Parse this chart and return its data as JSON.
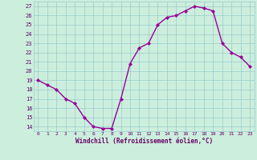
{
  "x": [
    0,
    1,
    2,
    3,
    4,
    5,
    6,
    7,
    8,
    9,
    10,
    11,
    12,
    13,
    14,
    15,
    16,
    17,
    18,
    19,
    20,
    21,
    22,
    23
  ],
  "y": [
    19,
    18.5,
    18,
    17,
    16.5,
    15,
    14,
    13.8,
    13.8,
    17,
    20.8,
    22.5,
    23,
    25,
    25.8,
    26,
    26.5,
    27,
    26.8,
    26.5,
    23,
    22,
    21.5,
    20.5
  ],
  "line_color": "#990099",
  "marker": "D",
  "marker_size": 2,
  "bg_color": "#cceedd",
  "grid_color": "#99cccc",
  "xlabel": "Windchill (Refroidissement éolien,°C)",
  "xlabel_color": "#660066",
  "tick_color": "#660066",
  "ylim": [
    13.5,
    27.5
  ],
  "yticks": [
    14,
    15,
    16,
    17,
    18,
    19,
    20,
    21,
    22,
    23,
    24,
    25,
    26,
    27
  ],
  "xticks": [
    0,
    1,
    2,
    3,
    4,
    5,
    6,
    7,
    8,
    9,
    10,
    11,
    12,
    13,
    14,
    15,
    16,
    17,
    18,
    19,
    20,
    21,
    22,
    23
  ],
  "xtick_labels": [
    "0",
    "1",
    "2",
    "3",
    "4",
    "5",
    "6",
    "7",
    "8",
    "9",
    "10",
    "11",
    "12",
    "13",
    "14",
    "15",
    "16",
    "17",
    "18",
    "19",
    "20",
    "21",
    "22",
    "23"
  ],
  "line_width": 1.0
}
